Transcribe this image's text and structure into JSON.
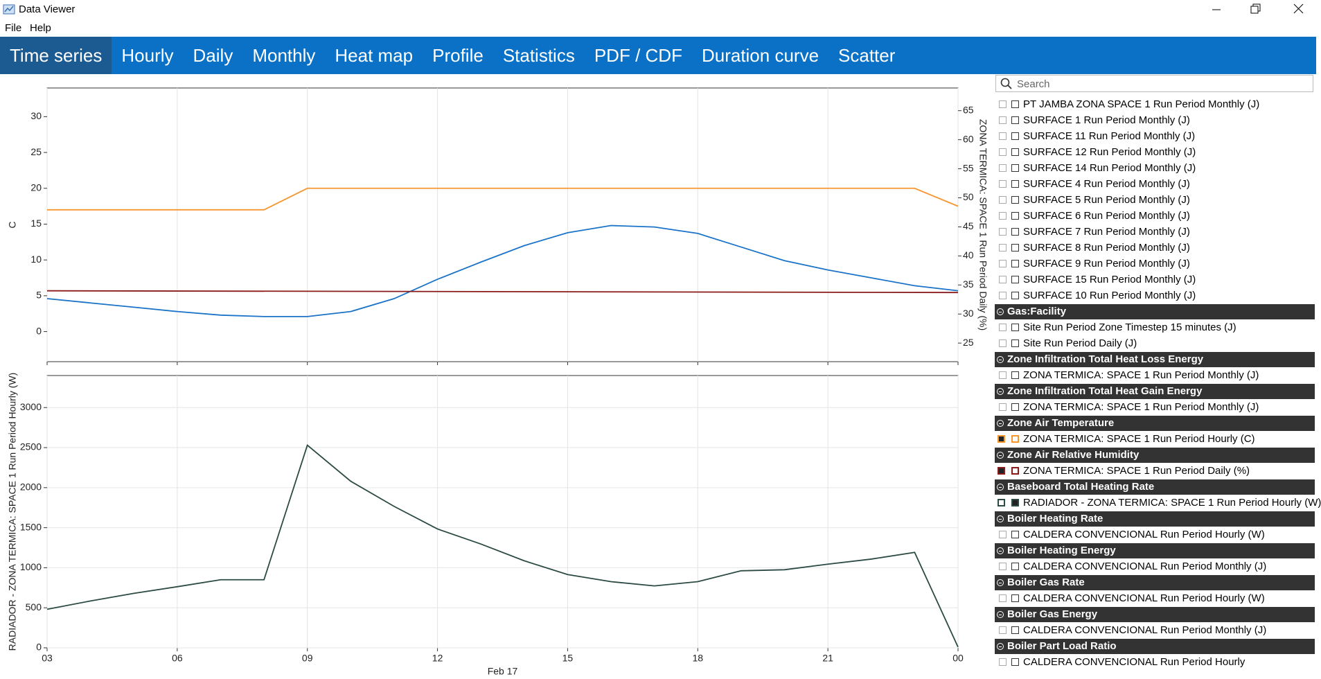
{
  "window": {
    "title": "Data Viewer"
  },
  "menu": [
    "File",
    "Help"
  ],
  "tabs": [
    "Time series",
    "Hourly",
    "Daily",
    "Monthly",
    "Heat map",
    "Profile",
    "Statistics",
    "PDF / CDF",
    "Duration curve",
    "Scatter"
  ],
  "active_tab": 0,
  "chart_data": [
    {
      "type": "line",
      "x": [
        3,
        4,
        5,
        6,
        7,
        8,
        9,
        10,
        11,
        12,
        13,
        14,
        15,
        16,
        17,
        18,
        19,
        20,
        21,
        22,
        23,
        24
      ],
      "xlim": [
        3,
        24
      ],
      "xticks": [
        3,
        6,
        9,
        12,
        15,
        18,
        21,
        24
      ],
      "xtick_labels": false,
      "grid_x": true,
      "grid_y": false,
      "ylim": [
        -4.2,
        34
      ],
      "yticks": [
        0,
        5,
        10,
        15,
        20,
        25,
        30
      ],
      "ylabel": "C",
      "y2lim": [
        21.8,
        68.9
      ],
      "y2ticks": [
        25,
        30,
        35,
        40,
        45,
        50,
        55,
        60,
        65
      ],
      "y2label": "ZONA TERMICA: SPACE 1 Run Period Daily (%)",
      "series": [
        {
          "color": "#f7962f",
          "values": [
            17,
            17,
            17,
            17,
            17,
            17,
            20,
            20,
            20,
            20,
            20,
            20,
            20,
            20,
            20,
            20,
            20,
            20,
            20,
            20,
            20,
            17.5
          ]
        },
        {
          "color": "#1a73c8",
          "values": [
            4.6,
            4.0,
            3.4,
            2.8,
            2.3,
            2.1,
            2.1,
            2.8,
            4.6,
            7.3,
            9.7,
            12.0,
            13.8,
            14.8,
            14.6,
            13.7,
            11.8,
            9.9,
            8.6,
            7.5,
            6.4,
            5.7
          ]
        },
        {
          "color": "#8b1a1a",
          "axis": "y2",
          "x": [
            3,
            24
          ],
          "values": [
            34.0,
            33.7
          ]
        }
      ]
    },
    {
      "type": "line",
      "x": [
        3,
        4,
        5,
        6,
        7,
        8,
        9,
        10,
        11,
        12,
        13,
        14,
        15,
        16,
        17,
        18,
        19,
        20,
        21,
        22,
        23,
        24
      ],
      "xlim": [
        3,
        24
      ],
      "xticks": [
        {
          "value": 3,
          "label": "03"
        },
        {
          "value": 6,
          "label": "06"
        },
        {
          "value": 9,
          "label": "09"
        },
        12,
        15,
        18,
        21,
        {
          "value": 24,
          "label": "00"
        }
      ],
      "xtick_labels": true,
      "xlabel": "Feb 17",
      "grid_x": true,
      "grid_y": true,
      "ylim": [
        0,
        3400
      ],
      "yticks": [
        0,
        500,
        1000,
        1500,
        2000,
        2500,
        3000
      ],
      "ylabel": "RADIADOR - ZONA TERMICA: SPACE 1 Run Period Hourly (W)",
      "series": [
        {
          "color": "#2b4a44",
          "values": [
            481,
            585,
            680,
            763,
            850,
            850,
            2530,
            2080,
            1766,
            1484,
            1296,
            1087,
            915,
            826,
            773,
            826,
            962,
            975,
            1045,
            1108,
            1192,
            10
          ]
        }
      ]
    }
  ],
  "sidebar": {
    "search": "Search",
    "items": [
      "PT JAMBA ZONA SPACE 1 Run Period Monthly (J)",
      "SURFACE 1 Run Period Monthly (J)",
      "SURFACE 11 Run Period Monthly (J)",
      "SURFACE 12 Run Period Monthly (J)",
      "SURFACE 14 Run Period Monthly (J)",
      "SURFACE 4 Run Period Monthly (J)",
      "SURFACE 5 Run Period Monthly (J)",
      "SURFACE 6 Run Period Monthly (J)",
      "SURFACE 7 Run Period Monthly (J)",
      "SURFACE 8 Run Period Monthly (J)",
      "SURFACE 9 Run Period Monthly (J)",
      "SURFACE 15 Run Period Monthly (J)",
      "SURFACE 10 Run Period Monthly (J)"
    ],
    "groups": [
      {
        "name": "Gas:Facility",
        "items": [
          {
            "label": "Site Run Period Zone Timestep 15 minutes (J)"
          },
          {
            "label": "Site Run Period Daily (J)"
          }
        ]
      },
      {
        "name": "Zone Infiltration Total Heat Loss Energy",
        "items": [
          {
            "label": "ZONA TERMICA: SPACE 1 Run Period Monthly (J)"
          }
        ]
      },
      {
        "name": "Zone Infiltration Total Heat Gain Energy",
        "items": [
          {
            "label": "ZONA TERMICA: SPACE 1 Run Period Monthly (J)"
          }
        ]
      },
      {
        "name": "Zone Air Temperature",
        "items": [
          {
            "label": "ZONA TERMICA: SPACE 1 Run Period Hourly (C)",
            "color": "#f7962f",
            "checked_box": 0
          }
        ]
      },
      {
        "name": "Zone Air Relative Humidity",
        "items": [
          {
            "label": "ZONA TERMICA: SPACE 1 Run Period Daily (%)",
            "color": "#8b1a1a",
            "checked_box": 0
          }
        ]
      },
      {
        "name": "Baseboard Total Heating Rate",
        "items": [
          {
            "label": "RADIADOR - ZONA TERMICA: SPACE 1 Run Period Hourly (W)",
            "color": "#2b4a44",
            "checked_box": 1
          }
        ]
      },
      {
        "name": "Boiler Heating Rate",
        "items": [
          {
            "label": "CALDERA CONVENCIONAL Run Period Hourly (W)"
          }
        ]
      },
      {
        "name": "Boiler Heating Energy",
        "items": [
          {
            "label": "CALDERA CONVENCIONAL Run Period Monthly (J)"
          }
        ]
      },
      {
        "name": "Boiler Gas Rate",
        "items": [
          {
            "label": "CALDERA CONVENCIONAL Run Period Hourly (W)"
          }
        ]
      },
      {
        "name": "Boiler Gas Energy",
        "items": [
          {
            "label": "CALDERA CONVENCIONAL Run Period Monthly (J)"
          }
        ]
      },
      {
        "name": "Boiler Part Load Ratio",
        "items": [
          {
            "label": "CALDERA CONVENCIONAL Run Period Hourly"
          }
        ]
      }
    ]
  }
}
